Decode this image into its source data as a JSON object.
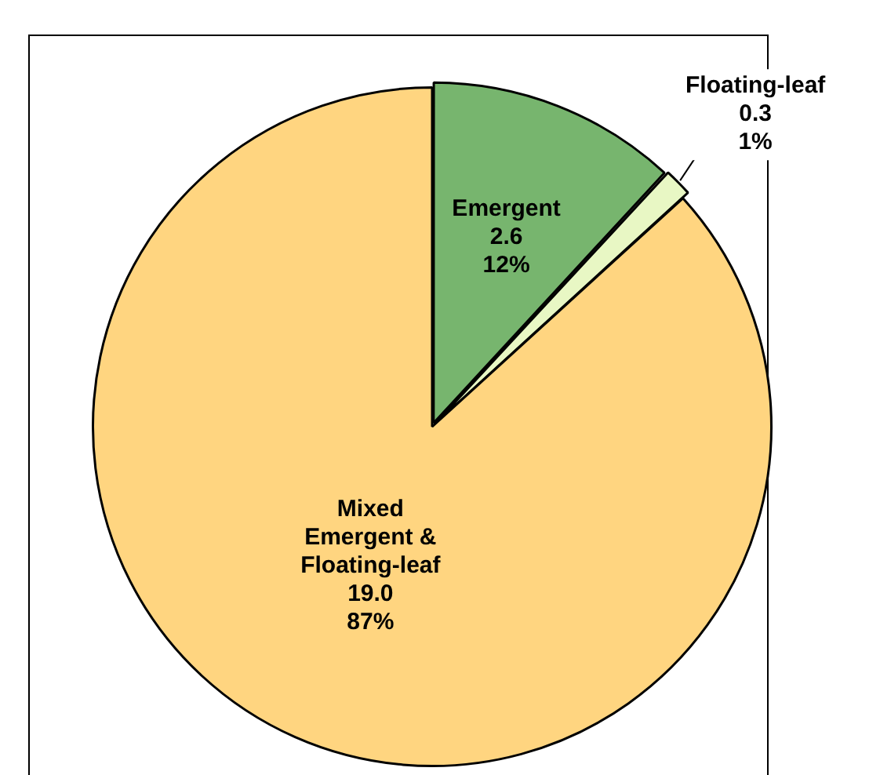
{
  "chart_data": {
    "type": "pie",
    "categories": [
      "Emergent",
      "Floating-leaf",
      "Mixed\nEmergent &\nFloating-leaf"
    ],
    "values": [
      2.6,
      0.3,
      19.0
    ],
    "colors": [
      "#77b56e",
      "#e8f7c4",
      "#ffd580"
    ],
    "value_labels": [
      "2.6\n12%",
      "0.3\n1%",
      "19.0\n87%"
    ],
    "legend": false
  }
}
